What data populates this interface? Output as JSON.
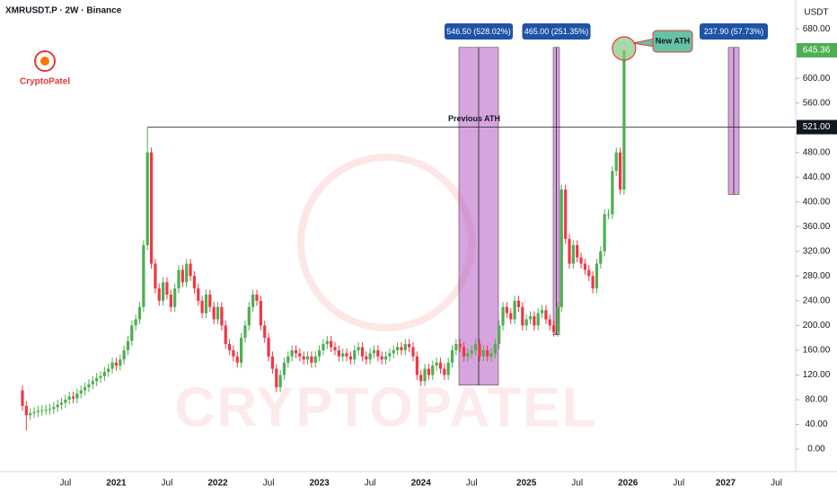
{
  "chart_data": {
    "type": "candlestick",
    "title": "XMRUSDT.P · 2W · Binance",
    "currency": "USDT",
    "logo": "CryptoPatel",
    "watermark": "CRYPTOPATEL",
    "up_color": "#4caf50",
    "down_color": "#f23645",
    "categories": [
      null,
      null,
      null,
      null,
      null,
      null,
      null,
      null,
      null,
      null,
      null,
      "Jul",
      null,
      null,
      null,
      null,
      null,
      null,
      null,
      null,
      null,
      null,
      null,
      null,
      "2021",
      null,
      null,
      null,
      null,
      null,
      null,
      null,
      null,
      null,
      null,
      null,
      null,
      "Jul",
      null,
      null,
      null,
      null,
      null,
      null,
      null,
      null,
      null,
      null,
      null,
      null,
      "2022",
      null,
      null,
      null,
      null,
      null,
      null,
      null,
      null,
      null,
      null,
      null,
      null,
      "Jul",
      null,
      null,
      null,
      null,
      null,
      null,
      null,
      null,
      null,
      null,
      null,
      null,
      "2023",
      null,
      null,
      null,
      null,
      null,
      null,
      null,
      null,
      null,
      null,
      null,
      null,
      "Jul",
      null,
      null,
      null,
      null,
      null,
      null,
      null,
      null,
      null,
      null,
      null,
      null,
      "2024",
      null,
      null,
      null,
      null,
      null,
      null,
      null,
      null,
      null,
      null,
      null,
      null,
      "Jul",
      null,
      null,
      null,
      null,
      null,
      null,
      null,
      null,
      null,
      null,
      null,
      null,
      null,
      "2025",
      null,
      null,
      null,
      null,
      null,
      null,
      null,
      null,
      null,
      null,
      null,
      null,
      "Jul",
      null,
      null,
      null,
      null,
      null,
      null,
      null,
      null,
      null,
      null,
      null,
      null,
      "2026",
      null,
      null,
      null,
      null,
      null,
      null,
      null,
      null,
      null,
      null,
      null,
      null,
      "Jul",
      null,
      null,
      null,
      null,
      null,
      null,
      null,
      null,
      null,
      null,
      null,
      "2027",
      null,
      null,
      null,
      null,
      null,
      null,
      null,
      null,
      null,
      null,
      null,
      null,
      "Jul",
      null,
      null,
      null,
      null
    ],
    "open": [
      95,
      70,
      55,
      58,
      60,
      62,
      63,
      64,
      65,
      68,
      72,
      75,
      80,
      85,
      82,
      90,
      95,
      100,
      105,
      110,
      115,
      118,
      125,
      130,
      140,
      135,
      145,
      160,
      175,
      200,
      210,
      230,
      330,
      480,
      300,
      260,
      240,
      270,
      250,
      230,
      260,
      290,
      270,
      300,
      280,
      260,
      240,
      220,
      250,
      230,
      210,
      230,
      200,
      170,
      160,
      150,
      140,
      180,
      200,
      230,
      250,
      240,
      200,
      180,
      150,
      130,
      100,
      120,
      140,
      150,
      160,
      155,
      150,
      145,
      150,
      140,
      150,
      160,
      170,
      175,
      165,
      160,
      150,
      155,
      150,
      145,
      160,
      165,
      150,
      145,
      155,
      160,
      150,
      145,
      150,
      155,
      160,
      165,
      160,
      170,
      165,
      150,
      120,
      110,
      130,
      120,
      135,
      140,
      130,
      120,
      140,
      160,
      170,
      165,
      150,
      155,
      160,
      170,
      150,
      160,
      150,
      155,
      170,
      200,
      230,
      220,
      210,
      240,
      230,
      200,
      210,
      215,
      200,
      220,
      225,
      210,
      200,
      190,
      230,
      420,
      340,
      300,
      330,
      310,
      300,
      290,
      280,
      260,
      300,
      320,
      380,
      380,
      450,
      480,
      420,
      null,
      null,
      null,
      null,
      null,
      null,
      null,
      null,
      null,
      null,
      null,
      null,
      null,
      null,
      null,
      null,
      null,
      null,
      null,
      null,
      null,
      null,
      null,
      null,
      null,
      null,
      null,
      null,
      null,
      null,
      null,
      null,
      null,
      null,
      null,
      null,
      null,
      null,
      null,
      null,
      null,
      null,
      null
    ],
    "high": [
      103,
      78,
      66,
      68,
      70,
      71,
      72,
      73,
      76,
      80,
      83,
      88,
      93,
      93,
      98,
      103,
      108,
      113,
      118,
      123,
      126,
      133,
      138,
      148,
      148,
      153,
      168,
      183,
      208,
      218,
      238,
      338,
      521,
      488,
      308,
      268,
      278,
      278,
      258,
      268,
      298,
      298,
      308,
      308,
      288,
      268,
      248,
      258,
      258,
      238,
      238,
      238,
      208,
      178,
      168,
      158,
      188,
      208,
      238,
      258,
      258,
      248,
      208,
      188,
      158,
      138,
      128,
      148,
      158,
      168,
      168,
      163,
      158,
      158,
      158,
      158,
      168,
      178,
      183,
      183,
      173,
      168,
      163,
      163,
      158,
      168,
      173,
      173,
      158,
      163,
      168,
      168,
      158,
      158,
      163,
      168,
      173,
      173,
      178,
      178,
      173,
      158,
      128,
      138,
      138,
      143,
      148,
      148,
      138,
      148,
      168,
      178,
      178,
      173,
      163,
      168,
      178,
      178,
      168,
      168,
      163,
      178,
      208,
      238,
      238,
      228,
      248,
      248,
      238,
      218,
      223,
      223,
      228,
      233,
      233,
      218,
      208,
      238,
      428,
      428,
      348,
      338,
      338,
      318,
      308,
      298,
      288,
      308,
      328,
      388,
      388,
      458,
      488,
      488,
      645.36,
      null,
      null,
      null,
      null,
      null,
      null,
      null,
      null,
      null,
      null,
      null,
      null,
      null,
      null,
      null,
      null,
      null,
      null,
      null,
      null,
      null,
      null,
      null,
      null,
      null,
      null,
      null,
      null,
      null,
      null,
      null,
      null,
      null,
      null,
      null,
      null,
      null,
      null,
      null,
      null,
      null,
      null,
      null
    ],
    "low": [
      62,
      30,
      47,
      50,
      52,
      54,
      55,
      56,
      57,
      60,
      64,
      67,
      72,
      74,
      74,
      82,
      87,
      92,
      97,
      102,
      107,
      110,
      117,
      122,
      127,
      127,
      137,
      152,
      167,
      192,
      202,
      222,
      322,
      292,
      252,
      232,
      232,
      242,
      222,
      222,
      252,
      262,
      262,
      272,
      252,
      232,
      212,
      212,
      222,
      202,
      202,
      192,
      162,
      152,
      142,
      132,
      132,
      172,
      192,
      222,
      232,
      192,
      172,
      142,
      122,
      92,
      92,
      112,
      132,
      142,
      147,
      142,
      137,
      137,
      132,
      132,
      142,
      152,
      162,
      157,
      152,
      142,
      142,
      142,
      137,
      137,
      152,
      142,
      137,
      137,
      147,
      142,
      137,
      137,
      142,
      147,
      152,
      152,
      152,
      157,
      142,
      112,
      102,
      102,
      112,
      112,
      127,
      122,
      112,
      112,
      132,
      152,
      157,
      142,
      142,
      147,
      152,
      142,
      142,
      142,
      142,
      147,
      162,
      192,
      212,
      202,
      202,
      222,
      192,
      192,
      202,
      192,
      192,
      212,
      202,
      192,
      182,
      182,
      222,
      332,
      292,
      292,
      302,
      292,
      282,
      272,
      252,
      252,
      292,
      312,
      372,
      372,
      442,
      412,
      412,
      null,
      null,
      null,
      null,
      null,
      null,
      null,
      null,
      null,
      null,
      null,
      null,
      null,
      null,
      null,
      null,
      null,
      null,
      null,
      null,
      null,
      null,
      null,
      null,
      null,
      null,
      null,
      null,
      null,
      null,
      null,
      null,
      null,
      null,
      null,
      null,
      null,
      null,
      null,
      null,
      null,
      null,
      null
    ],
    "close": [
      70,
      55,
      58,
      60,
      62,
      63,
      64,
      65,
      68,
      72,
      75,
      80,
      85,
      82,
      90,
      95,
      100,
      105,
      110,
      115,
      118,
      125,
      130,
      140,
      135,
      145,
      160,
      175,
      200,
      210,
      230,
      330,
      480,
      300,
      260,
      240,
      270,
      250,
      230,
      260,
      290,
      270,
      300,
      280,
      260,
      240,
      220,
      250,
      230,
      210,
      230,
      200,
      170,
      160,
      150,
      140,
      180,
      200,
      230,
      250,
      240,
      200,
      180,
      150,
      130,
      100,
      120,
      140,
      150,
      160,
      155,
      150,
      145,
      150,
      140,
      150,
      160,
      170,
      175,
      165,
      160,
      150,
      155,
      150,
      145,
      160,
      165,
      150,
      145,
      155,
      160,
      150,
      145,
      150,
      155,
      160,
      165,
      160,
      170,
      165,
      150,
      120,
      110,
      130,
      120,
      135,
      140,
      130,
      120,
      140,
      160,
      170,
      165,
      150,
      155,
      160,
      170,
      150,
      160,
      150,
      155,
      170,
      200,
      230,
      220,
      210,
      240,
      230,
      200,
      210,
      215,
      200,
      220,
      225,
      210,
      200,
      190,
      230,
      420,
      340,
      300,
      330,
      310,
      300,
      290,
      280,
      260,
      300,
      320,
      380,
      380,
      450,
      480,
      420,
      645.36,
      null,
      null,
      null,
      null,
      null,
      null,
      null,
      null,
      null,
      null,
      null,
      null,
      null,
      null,
      null,
      null,
      null,
      null,
      null,
      null,
      null,
      null,
      null,
      null,
      null,
      null,
      null,
      null,
      null,
      null,
      null,
      null,
      null,
      null,
      null,
      null,
      null,
      null,
      null,
      null,
      null,
      null,
      null
    ],
    "ylim": [
      -36.3,
      726.7
    ],
    "yticks": [
      {
        "value": 0,
        "label": "0.00"
      },
      {
        "value": 40,
        "label": "40.00"
      },
      {
        "value": 80,
        "label": "80.00"
      },
      {
        "value": 120,
        "label": "120.00"
      },
      {
        "value": 160,
        "label": "160.00"
      },
      {
        "value": 200,
        "label": "200.00"
      },
      {
        "value": 240,
        "label": "240.00"
      },
      {
        "value": 280,
        "label": "280.00"
      },
      {
        "value": 320,
        "label": "320.00"
      },
      {
        "value": 360,
        "label": "360.00"
      },
      {
        "value": 400,
        "label": "400.00"
      },
      {
        "value": 440,
        "label": "440.00"
      },
      {
        "value": 480,
        "label": "480.00"
      },
      {
        "value": 560,
        "label": "560.00"
      },
      {
        "value": 600,
        "label": "600.00"
      },
      {
        "value": 680,
        "label": "680.00"
      }
    ],
    "grid": false,
    "previous_ath": {
      "text": "Previous ATH",
      "value": 521,
      "label": "521.00"
    },
    "last_price": {
      "value": 645.36,
      "label": "645.36"
    },
    "new_ath": "New ATH",
    "measures": [
      {
        "label": "546.50 (528.02%)",
        "low": 103.5,
        "high": 650
      },
      {
        "label": "465.00 (251.35%)",
        "low": 185,
        "high": 650
      },
      {
        "label": "237.90 (57.73%)",
        "low": 412.1,
        "high": 650
      }
    ]
  }
}
